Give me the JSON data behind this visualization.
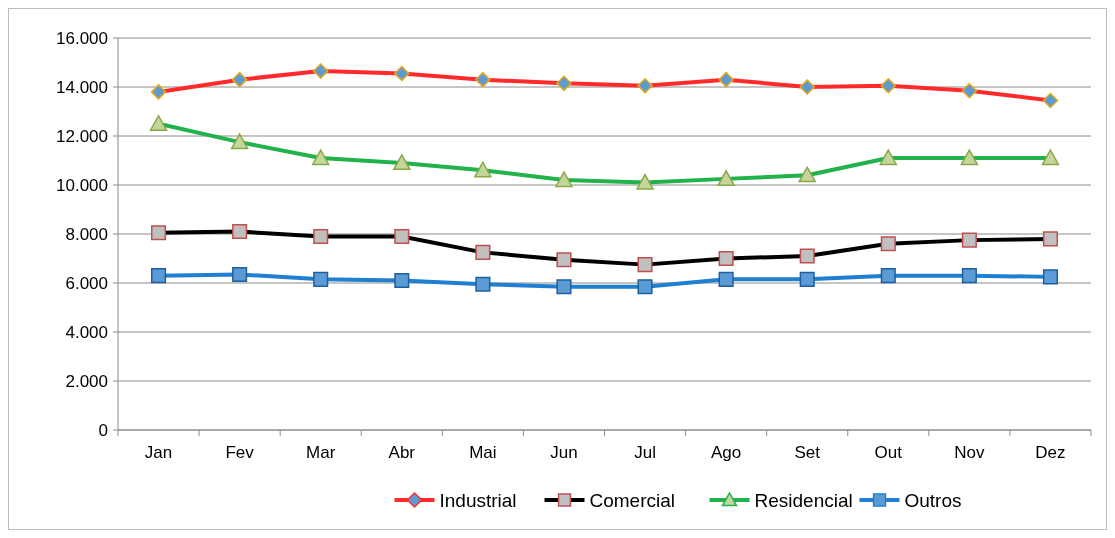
{
  "chart_data": {
    "type": "line",
    "categories": [
      "Jan",
      "Fev",
      "Mar",
      "Abr",
      "Mai",
      "Jun",
      "Jul",
      "Ago",
      "Set",
      "Out",
      "Nov",
      "Dez"
    ],
    "series": [
      {
        "name": "Industrial",
        "color": "#ff2a2a",
        "marker": "diamond",
        "values": [
          13800,
          14300,
          14650,
          14550,
          14300,
          14150,
          14050,
          14300,
          14000,
          14050,
          13850,
          13450
        ]
      },
      {
        "name": "Comercial",
        "color": "#000000",
        "marker": "square",
        "values": [
          8050,
          8100,
          7900,
          7900,
          7250,
          6950,
          6750,
          7000,
          7100,
          7600,
          7750,
          7800
        ]
      },
      {
        "name": "Residencial",
        "color": "#22b24c",
        "marker": "triangle",
        "values": [
          12500,
          11750,
          11100,
          10900,
          10600,
          10200,
          10100,
          10250,
          10400,
          11100,
          11100,
          11100
        ]
      },
      {
        "name": "Outros",
        "color": "#1f7fd0",
        "marker": "square",
        "values": [
          6300,
          6350,
          6150,
          6100,
          5950,
          5850,
          5850,
          6150,
          6150,
          6300,
          6300,
          6250
        ]
      }
    ],
    "ylim": [
      0,
      16000
    ],
    "yticks": [
      {
        "value": 0,
        "label": "0"
      },
      {
        "value": 2000,
        "label": "2.000"
      },
      {
        "value": 4000,
        "label": "4.000"
      },
      {
        "value": 6000,
        "label": "6.000"
      },
      {
        "value": 8000,
        "label": "8.000"
      },
      {
        "value": 10000,
        "label": "10.000"
      },
      {
        "value": 12000,
        "label": "12.000"
      },
      {
        "value": 14000,
        "label": "14.000"
      },
      {
        "value": 16000,
        "label": "16.000"
      }
    ],
    "grid": "y",
    "legend": "bottom"
  }
}
